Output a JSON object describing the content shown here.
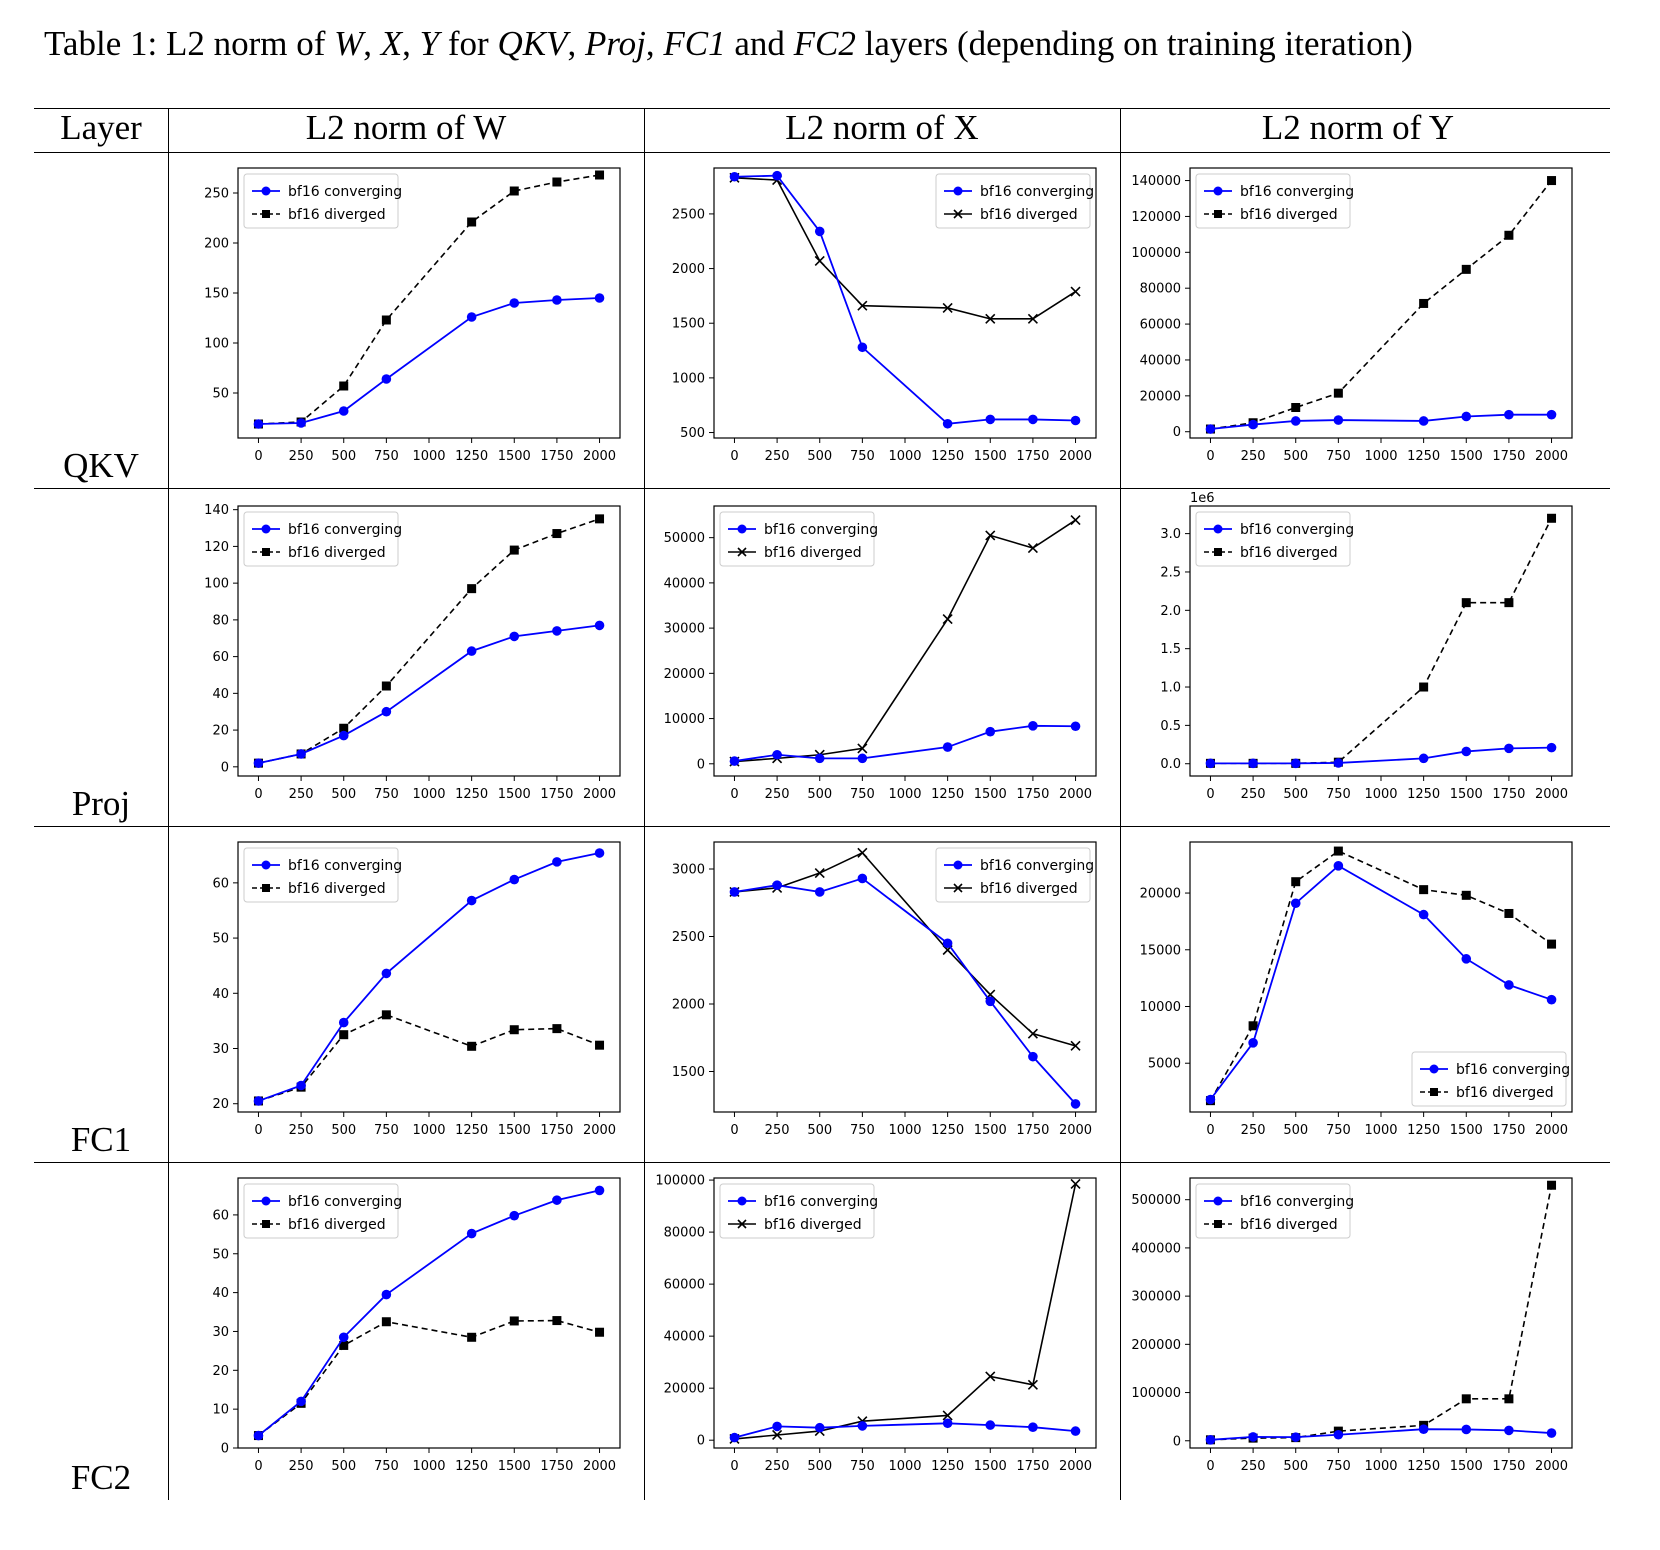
{
  "caption": {
    "prefix": "Table 1: L2 norm of ",
    "w": "W",
    "sep1": ", ",
    "x": "X",
    "sep2": ", ",
    "y": "Y",
    "for": " for ",
    "qkv": "QKV",
    "sep3": ", ",
    "proj": "Proj",
    "sep4": ", ",
    "fc1": "FC1",
    "and": " and ",
    "fc2": "FC2",
    "suffix": " layers (depending on training iteration)"
  },
  "headers": [
    "Layer",
    "L2 norm of W",
    "L2 norm of X",
    "L2 norm of Y"
  ],
  "row_labels": [
    "QKV",
    "Proj",
    "FC1",
    "FC2"
  ],
  "colors": {
    "converging": "#0000ff",
    "diverged": "#000000"
  },
  "chart_data": [
    {
      "type": "line",
      "layer": "QKV",
      "metric": "W",
      "x": [
        0,
        250,
        500,
        750,
        1250,
        1500,
        1750,
        2000
      ],
      "xticks": [
        0,
        250,
        500,
        750,
        1000,
        1250,
        1500,
        1750,
        2000
      ],
      "xlim": [
        -120,
        2120
      ],
      "yticks": [
        50,
        100,
        150,
        200,
        250
      ],
      "ylim": [
        5,
        275
      ],
      "ytick_labels": [
        "50",
        "100",
        "150",
        "200",
        "250"
      ],
      "exponent": "",
      "diverged_marker": "square",
      "legend": "upper-left",
      "series": [
        {
          "name": "bf16 converging",
          "values": [
            19,
            20,
            32,
            64,
            126,
            140,
            143,
            145
          ]
        },
        {
          "name": "bf16 diverged",
          "values": [
            19,
            21,
            57,
            123,
            221,
            252,
            261,
            268
          ]
        }
      ]
    },
    {
      "type": "line",
      "layer": "QKV",
      "metric": "X",
      "x": [
        0,
        250,
        500,
        750,
        1250,
        1500,
        1750,
        2000
      ],
      "xticks": [
        0,
        250,
        500,
        750,
        1000,
        1250,
        1500,
        1750,
        2000
      ],
      "xlim": [
        -120,
        2120
      ],
      "yticks": [
        500,
        1000,
        1500,
        2000,
        2500
      ],
      "ylim": [
        450,
        2920
      ],
      "ytick_labels": [
        "500",
        "1000",
        "1500",
        "2000",
        "2500"
      ],
      "exponent": "",
      "diverged_marker": "x",
      "legend": "upper-right",
      "series": [
        {
          "name": "bf16 converging",
          "values": [
            2840,
            2850,
            2340,
            1280,
            580,
            620,
            620,
            610
          ]
        },
        {
          "name": "bf16 diverged",
          "values": [
            2830,
            2810,
            2070,
            1660,
            1640,
            1540,
            1540,
            1790
          ]
        }
      ]
    },
    {
      "type": "line",
      "layer": "QKV",
      "metric": "Y",
      "x": [
        0,
        250,
        500,
        750,
        1250,
        1500,
        1750,
        2000
      ],
      "xticks": [
        0,
        250,
        500,
        750,
        1000,
        1250,
        1500,
        1750,
        2000
      ],
      "xlim": [
        -120,
        2120
      ],
      "yticks": [
        0,
        20000,
        40000,
        60000,
        80000,
        100000,
        120000,
        140000
      ],
      "ylim": [
        -3500,
        147000
      ],
      "ytick_labels": [
        "0",
        "20000",
        "40000",
        "60000",
        "80000",
        "100000",
        "120000",
        "140000"
      ],
      "exponent": "",
      "diverged_marker": "square",
      "legend": "upper-left",
      "series": [
        {
          "name": "bf16 converging",
          "values": [
            1500,
            4000,
            6000,
            6500,
            6000,
            8500,
            9500,
            9500
          ]
        },
        {
          "name": "bf16 diverged",
          "values": [
            1500,
            5000,
            13500,
            21500,
            71500,
            90500,
            109500,
            140000
          ]
        }
      ]
    },
    {
      "type": "line",
      "layer": "Proj",
      "metric": "W",
      "x": [
        0,
        250,
        500,
        750,
        1250,
        1500,
        1750,
        2000
      ],
      "xticks": [
        0,
        250,
        500,
        750,
        1000,
        1250,
        1500,
        1750,
        2000
      ],
      "xlim": [
        -120,
        2120
      ],
      "yticks": [
        0,
        20,
        40,
        60,
        80,
        100,
        120,
        140
      ],
      "ylim": [
        -5,
        142
      ],
      "ytick_labels": [
        "0",
        "20",
        "40",
        "60",
        "80",
        "100",
        "120",
        "140"
      ],
      "exponent": "",
      "diverged_marker": "square",
      "legend": "upper-left",
      "series": [
        {
          "name": "bf16 converging",
          "values": [
            2,
            7,
            17,
            30,
            63,
            71,
            74,
            77
          ]
        },
        {
          "name": "bf16 diverged",
          "values": [
            2,
            7,
            21,
            44,
            97,
            118,
            127,
            135
          ]
        }
      ]
    },
    {
      "type": "line",
      "layer": "Proj",
      "metric": "X",
      "x": [
        0,
        250,
        500,
        750,
        1250,
        1500,
        1750,
        2000
      ],
      "xticks": [
        0,
        250,
        500,
        750,
        1000,
        1250,
        1500,
        1750,
        2000
      ],
      "xlim": [
        -120,
        2120
      ],
      "yticks": [
        0,
        10000,
        20000,
        30000,
        40000,
        50000
      ],
      "ylim": [
        -2700,
        57000
      ],
      "ytick_labels": [
        "0",
        "10000",
        "20000",
        "30000",
        "40000",
        "50000"
      ],
      "exponent": "",
      "diverged_marker": "x",
      "legend": "upper-left",
      "series": [
        {
          "name": "bf16 converging",
          "values": [
            600,
            2000,
            1200,
            1200,
            3700,
            7100,
            8400,
            8300
          ]
        },
        {
          "name": "bf16 diverged",
          "values": [
            500,
            1200,
            2000,
            3400,
            32000,
            50500,
            47700,
            53900
          ]
        }
      ]
    },
    {
      "type": "line",
      "layer": "Proj",
      "metric": "Y",
      "x": [
        0,
        250,
        500,
        750,
        1250,
        1500,
        1750,
        2000
      ],
      "xticks": [
        0,
        250,
        500,
        750,
        1000,
        1250,
        1500,
        1750,
        2000
      ],
      "xlim": [
        -120,
        2120
      ],
      "yticks": [
        0,
        0.5,
        1.0,
        1.5,
        2.0,
        2.5,
        3.0
      ],
      "ylim": [
        -0.16,
        3.36
      ],
      "ytick_labels": [
        "0.0",
        "0.5",
        "1.0",
        "1.5",
        "2.0",
        "2.5",
        "3.0"
      ],
      "exponent": "1e6",
      "diverged_marker": "square",
      "legend": "upper-left",
      "series": [
        {
          "name": "bf16 converging",
          "values": [
            0.005,
            0.005,
            0.005,
            0.01,
            0.07,
            0.16,
            0.2,
            0.21
          ]
        },
        {
          "name": "bf16 diverged",
          "values": [
            0.005,
            0.005,
            0.005,
            0.02,
            1.0,
            2.1,
            2.1,
            3.2
          ]
        }
      ]
    },
    {
      "type": "line",
      "layer": "FC1",
      "metric": "W",
      "x": [
        0,
        250,
        500,
        750,
        1250,
        1500,
        1750,
        2000
      ],
      "xticks": [
        0,
        250,
        500,
        750,
        1000,
        1250,
        1500,
        1750,
        2000
      ],
      "xlim": [
        -120,
        2120
      ],
      "yticks": [
        20,
        30,
        40,
        50,
        60
      ],
      "ylim": [
        18.5,
        67.4
      ],
      "ytick_labels": [
        "20",
        "30",
        "40",
        "50",
        "60"
      ],
      "exponent": "",
      "diverged_marker": "square",
      "legend": "upper-left",
      "series": [
        {
          "name": "bf16 converging",
          "values": [
            20.5,
            23.3,
            34.7,
            43.6,
            56.8,
            60.6,
            63.8,
            65.4
          ]
        },
        {
          "name": "bf16 diverged",
          "values": [
            20.5,
            23,
            32.5,
            36.1,
            30.4,
            33.4,
            33.6,
            30.6
          ]
        }
      ]
    },
    {
      "type": "line",
      "layer": "FC1",
      "metric": "X",
      "x": [
        0,
        250,
        500,
        750,
        1250,
        1500,
        1750,
        2000
      ],
      "xticks": [
        0,
        250,
        500,
        750,
        1000,
        1250,
        1500,
        1750,
        2000
      ],
      "xlim": [
        -120,
        2120
      ],
      "yticks": [
        1500,
        2000,
        2500,
        3000
      ],
      "ylim": [
        1200,
        3200
      ],
      "ytick_labels": [
        "1500",
        "2000",
        "2500",
        "3000"
      ],
      "exponent": "",
      "diverged_marker": "x",
      "legend": "upper-right",
      "series": [
        {
          "name": "bf16 converging",
          "values": [
            2830,
            2880,
            2830,
            2930,
            2450,
            2020,
            1610,
            1260
          ]
        },
        {
          "name": "bf16 diverged",
          "values": [
            2830,
            2860,
            2970,
            3120,
            2400,
            2070,
            1780,
            1690
          ]
        }
      ]
    },
    {
      "type": "line",
      "layer": "FC1",
      "metric": "Y",
      "x": [
        0,
        250,
        500,
        750,
        1250,
        1500,
        1750,
        2000
      ],
      "xticks": [
        0,
        250,
        500,
        750,
        1000,
        1250,
        1500,
        1750,
        2000
      ],
      "xlim": [
        -120,
        2120
      ],
      "yticks": [
        5000,
        10000,
        15000,
        20000
      ],
      "ylim": [
        700,
        24500
      ],
      "ytick_labels": [
        "5000",
        "10000",
        "15000",
        "20000"
      ],
      "exponent": "",
      "diverged_marker": "square",
      "legend": "lower-right",
      "series": [
        {
          "name": "bf16 converging",
          "values": [
            1800,
            6800,
            19100,
            22400,
            18100,
            14200,
            11900,
            10600
          ]
        },
        {
          "name": "bf16 diverged",
          "values": [
            1700,
            8300,
            21000,
            23700,
            20300,
            19800,
            18200,
            15500
          ]
        }
      ]
    },
    {
      "type": "line",
      "layer": "FC2",
      "metric": "W",
      "x": [
        0,
        250,
        500,
        750,
        1250,
        1500,
        1750,
        2000
      ],
      "xticks": [
        0,
        250,
        500,
        750,
        1000,
        1250,
        1500,
        1750,
        2000
      ],
      "xlim": [
        -120,
        2120
      ],
      "yticks": [
        0,
        10,
        20,
        30,
        40,
        50,
        60
      ],
      "ylim": [
        0,
        69.5
      ],
      "ytick_labels": [
        "0",
        "10",
        "20",
        "30",
        "40",
        "50",
        "60"
      ],
      "exponent": "",
      "diverged_marker": "square",
      "legend": "upper-left",
      "series": [
        {
          "name": "bf16 converging",
          "values": [
            3.2,
            12,
            28.5,
            39.5,
            55.2,
            59.8,
            63.8,
            66.3
          ]
        },
        {
          "name": "bf16 diverged",
          "values": [
            3.2,
            11.5,
            26.4,
            32.5,
            28.5,
            32.7,
            32.8,
            29.8
          ]
        }
      ]
    },
    {
      "type": "line",
      "layer": "FC2",
      "metric": "X",
      "x": [
        0,
        250,
        500,
        750,
        1250,
        1500,
        1750,
        2000
      ],
      "xticks": [
        0,
        250,
        500,
        750,
        1000,
        1250,
        1500,
        1750,
        2000
      ],
      "xlim": [
        -120,
        2120
      ],
      "yticks": [
        0,
        20000,
        40000,
        60000,
        80000,
        100000
      ],
      "ylim": [
        -3000,
        100800
      ],
      "ytick_labels": [
        "0",
        "20000",
        "40000",
        "60000",
        "80000",
        "100000"
      ],
      "exponent": "",
      "diverged_marker": "x",
      "legend": "upper-left",
      "series": [
        {
          "name": "bf16 converging",
          "values": [
            1000,
            5300,
            4800,
            5500,
            6500,
            5800,
            5000,
            3500
          ]
        },
        {
          "name": "bf16 diverged",
          "values": [
            500,
            2000,
            3500,
            7300,
            9500,
            24500,
            21300,
            98500
          ]
        }
      ]
    },
    {
      "type": "line",
      "layer": "FC2",
      "metric": "Y",
      "x": [
        0,
        250,
        500,
        750,
        1250,
        1500,
        1750,
        2000
      ],
      "xticks": [
        0,
        250,
        500,
        750,
        1000,
        1250,
        1500,
        1750,
        2000
      ],
      "xlim": [
        -120,
        2120
      ],
      "yticks": [
        0,
        100000,
        200000,
        300000,
        400000,
        500000
      ],
      "ylim": [
        -15000,
        545000
      ],
      "ytick_labels": [
        "0",
        "100000",
        "200000",
        "300000",
        "400000",
        "500000"
      ],
      "exponent": "",
      "diverged_marker": "square",
      "legend": "upper-left",
      "series": [
        {
          "name": "bf16 converging",
          "values": [
            2000,
            8000,
            7500,
            12500,
            24000,
            23500,
            21500,
            16000
          ]
        },
        {
          "name": "bf16 diverged",
          "values": [
            2000,
            5500,
            6500,
            20000,
            32000,
            87000,
            87000,
            530000
          ]
        }
      ]
    }
  ]
}
